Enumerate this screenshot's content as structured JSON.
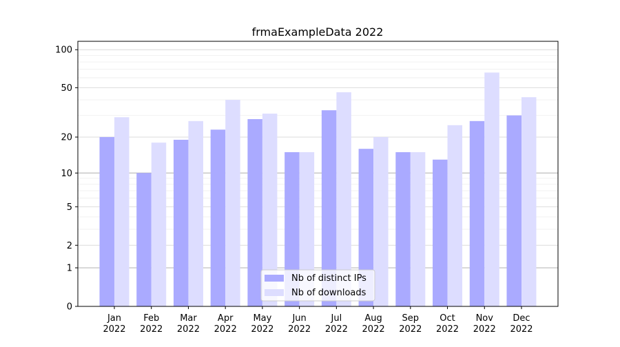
{
  "chart_data": {
    "type": "bar",
    "title": "frmaExampleData 2022",
    "xlabel": "",
    "ylabel": "",
    "yscale": "log(1+y)",
    "ylim": [
      0,
      116
    ],
    "yticks": [
      0,
      1,
      2,
      5,
      10,
      20,
      50,
      100
    ],
    "grid": true,
    "legend_position": "lower-center",
    "categories": [
      "Jan\n2022",
      "Feb\n2022",
      "Mar\n2022",
      "Apr\n2022",
      "May\n2022",
      "Jun\n2022",
      "Jul\n2022",
      "Aug\n2022",
      "Sep\n2022",
      "Oct\n2022",
      "Nov\n2022",
      "Dec\n2022"
    ],
    "series": [
      {
        "name": "Nb of distinct IPs",
        "color": "#aaaaff",
        "values": [
          20,
          10,
          19,
          23,
          28,
          15,
          33,
          16,
          15,
          13,
          27,
          30
        ]
      },
      {
        "name": "Nb of downloads",
        "color": "#ddddff",
        "values": [
          29,
          18,
          27,
          40,
          31,
          15,
          46,
          20,
          15,
          25,
          66,
          42
        ]
      }
    ]
  }
}
